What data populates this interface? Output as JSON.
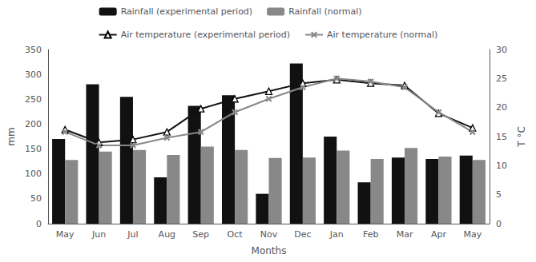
{
  "chart_data": {
    "type": "bar",
    "x_label": "Months",
    "y_label": "mm",
    "y2_label": "T °C",
    "categories": [
      "May",
      "Jun",
      "Jul",
      "Aug",
      "Sep",
      "Oct",
      "Nov",
      "Dec",
      "Jan",
      "Feb",
      "Mar",
      "Apr",
      "May"
    ],
    "series": [
      {
        "name": "Rainfall (experimental period)",
        "type": "bar",
        "color": "#111111",
        "values": [
          170,
          280,
          255,
          93,
          237,
          258,
          60,
          322,
          175,
          83,
          133,
          130,
          137
        ]
      },
      {
        "name": "Rainfall (normal)",
        "type": "bar",
        "color": "#888888",
        "values": [
          128,
          145,
          148,
          138,
          155,
          148,
          132,
          133,
          147,
          130,
          152,
          135,
          128
        ]
      },
      {
        "name": "Air temperature (experimental period)",
        "type": "line",
        "axis": "y2",
        "color": "#111111",
        "marker": "triangle",
        "values": [
          16.2,
          14.0,
          14.5,
          15.8,
          19.8,
          21.5,
          22.8,
          24.2,
          24.8,
          24.2,
          23.8,
          19.0,
          16.5
        ]
      },
      {
        "name": "Air temperature (normal)",
        "type": "line",
        "axis": "y2",
        "color": "#888888",
        "marker": "x",
        "values": [
          15.8,
          13.5,
          13.5,
          14.8,
          15.8,
          19.2,
          21.5,
          23.5,
          25.0,
          24.5,
          23.5,
          19.2,
          15.8
        ]
      }
    ],
    "ylim": [
      0,
      350
    ],
    "yticks": [
      0,
      50,
      100,
      150,
      200,
      250,
      300,
      350
    ],
    "y2lim": [
      0,
      30
    ],
    "y2ticks": [
      0,
      5,
      10,
      15,
      20,
      25,
      30
    ],
    "grid": false,
    "legend": "top"
  }
}
